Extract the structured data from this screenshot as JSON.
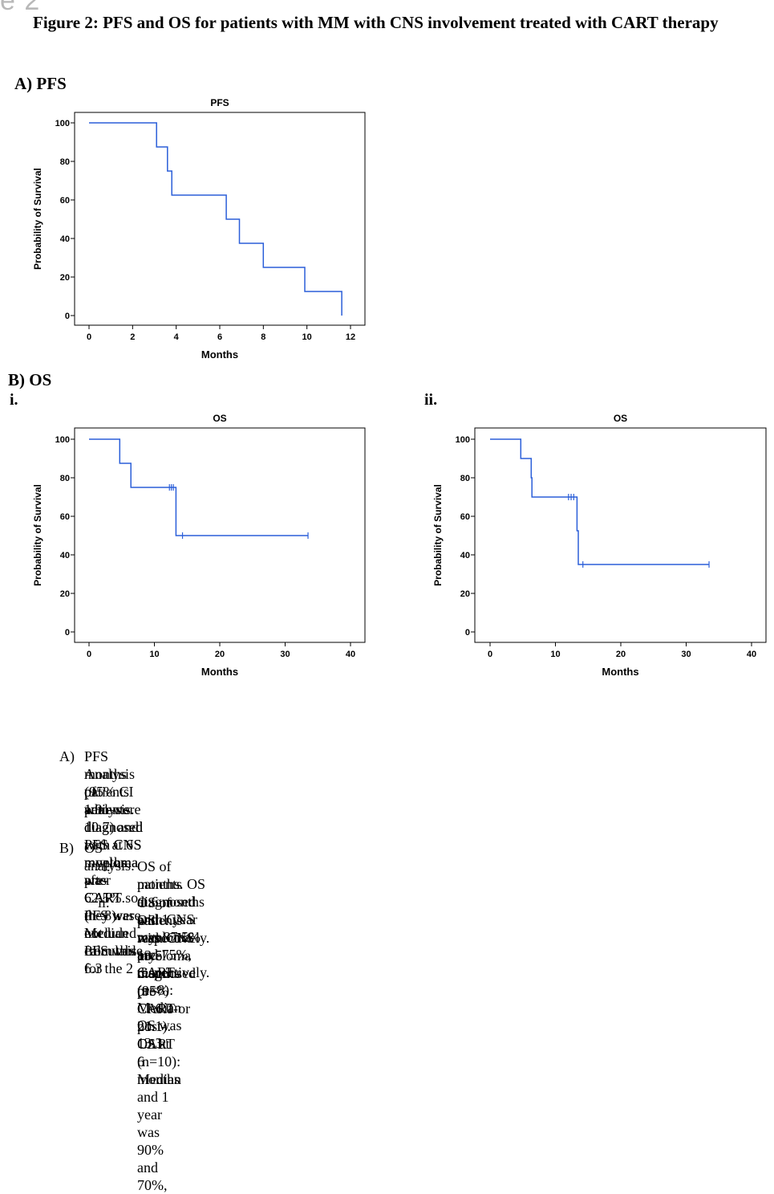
{
  "fragment": "e 2",
  "figure_title": "Figure 2: PFS and OS for patients with MM with CNS involvement treated with CART therapy",
  "section_a": "A)  PFS",
  "section_b": "B)  OS",
  "sub_i": "i.",
  "sub_ii": "ii.",
  "chart_data": [
    {
      "type": "line",
      "title": "PFS",
      "xlabel": "Months",
      "ylabel": "Probability of Survival",
      "xlim": [
        0,
        12
      ],
      "ylim": [
        0,
        100
      ],
      "xticks": [
        "0",
        "2",
        "4",
        "6",
        "8",
        "10",
        "12"
      ],
      "yticks": [
        "0",
        "20",
        "40",
        "60",
        "80",
        "100"
      ],
      "grid": false,
      "step": true,
      "series": [
        {
          "x": [
            0,
            3.1,
            3.1,
            3.6,
            3.6,
            3.8,
            3.8,
            6.3,
            6.3,
            6.9,
            6.9,
            8.0,
            8.0,
            9.9,
            9.9,
            11.6,
            11.6
          ],
          "y": [
            100,
            100,
            87.5,
            87.5,
            75,
            75,
            62.5,
            62.5,
            50,
            50,
            37.5,
            37.5,
            25,
            25,
            12.5,
            12.5,
            0
          ]
        }
      ],
      "censored": []
    },
    {
      "type": "line",
      "title": "OS",
      "xlabel": "Months",
      "ylabel": "Probability of Survival",
      "xlim": [
        0,
        40
      ],
      "ylim": [
        0,
        100
      ],
      "xticks": [
        "0",
        "10",
        "20",
        "30",
        "40"
      ],
      "yticks": [
        "0",
        "20",
        "40",
        "60",
        "80",
        "100"
      ],
      "grid": false,
      "step": true,
      "series": [
        {
          "x": [
            0,
            4.7,
            4.7,
            6.4,
            6.4,
            13.3,
            13.3,
            33.5
          ],
          "y": [
            100,
            100,
            87.5,
            87.5,
            75,
            75,
            50,
            50
          ]
        }
      ],
      "censored": [
        {
          "x": 12.3,
          "y": 75
        },
        {
          "x": 12.6,
          "y": 75
        },
        {
          "x": 12.9,
          "y": 75
        },
        {
          "x": 14.3,
          "y": 50
        },
        {
          "x": 33.5,
          "y": 50
        }
      ]
    },
    {
      "type": "line",
      "title": "OS",
      "xlabel": "Months",
      "ylabel": "Probability of Survival",
      "xlim": [
        0,
        40
      ],
      "ylim": [
        0,
        100
      ],
      "xticks": [
        "0",
        "10",
        "20",
        "30",
        "40"
      ],
      "yticks": [
        "0",
        "20",
        "40",
        "60",
        "80",
        "100"
      ],
      "grid": false,
      "step": true,
      "series": [
        {
          "x": [
            0,
            4.7,
            4.7,
            6.3,
            6.3,
            6.4,
            6.4,
            13.3,
            13.3,
            13.5,
            13.5,
            33.5
          ],
          "y": [
            100,
            100,
            90,
            90,
            80,
            80,
            70,
            70,
            52.5,
            52.5,
            35,
            35
          ]
        }
      ],
      "censored": [
        {
          "x": 12.0,
          "y": 70
        },
        {
          "x": 12.4,
          "y": 70
        },
        {
          "x": 12.8,
          "y": 70
        },
        {
          "x": 14.2,
          "y": 35
        },
        {
          "x": 33.5,
          "y": 35
        }
      ]
    }
  ],
  "notes": {
    "a_label": "A)",
    "a_lines": [
      "PFS Analysis of patients diagnosed with CNS myeloma pre-CART (n=8): Median PFS was 6.3",
      "months (95% CI 1.9 – 10.7) and PFS at 6 months was 62.5%. PFS was not calculable for the 2",
      "patients who were diagnosed with CNS myeloma after CART so they were excluded from this",
      "analysis."
    ],
    "b_label": "B)",
    "b_head": "OS analysis:",
    "b_i_label": "i.",
    "b_i_lines": [
      "OS of patients diagnosed with CNS myeloma pre-CART (n=8): Median OS was 13.3",
      "months. OS at 6 months and 1 year was 87.5% and 75%, respectively."
    ],
    "b_ii_label": "ii.",
    "b_ii_lines": [
      "OS of patients with CNS myeloma diagnosed pre-CART or post-CART (n=10): Median",
      "OS was 13.5 months (95% CI 6.0- 21.1). OS at 6 months and 1 year was 90% and 70%,",
      "respectively."
    ]
  }
}
